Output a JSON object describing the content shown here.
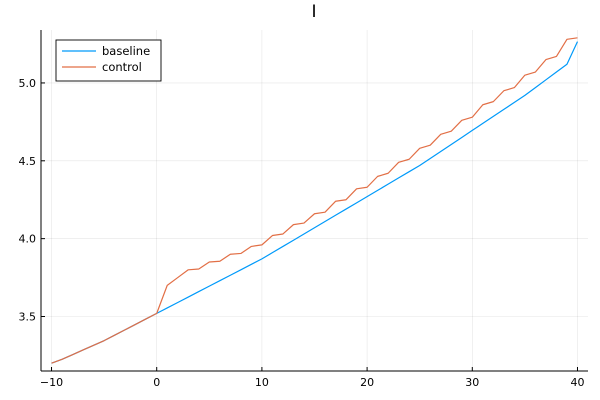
{
  "chart_data": {
    "type": "line",
    "title": "I",
    "xlabel": "",
    "ylabel": "",
    "xlim": [
      -11,
      41
    ],
    "ylim": [
      3.15,
      5.34
    ],
    "xticks": [
      -10,
      0,
      10,
      20,
      30,
      40
    ],
    "yticks": [
      3.5,
      4.0,
      4.5,
      5.0
    ],
    "xtick_labels": [
      "−10",
      "0",
      "10",
      "20",
      "30",
      "40"
    ],
    "ytick_labels": [
      "3.5",
      "4.0",
      "4.5",
      "5.0"
    ],
    "grid": true,
    "legend_position": "top-left",
    "x": [
      -10,
      -9,
      -8,
      -7,
      -6,
      -5,
      -4,
      -3,
      -2,
      -1,
      0,
      1,
      2,
      3,
      4,
      5,
      6,
      7,
      8,
      9,
      10,
      11,
      12,
      13,
      14,
      15,
      16,
      17,
      18,
      19,
      20,
      21,
      22,
      23,
      24,
      25,
      26,
      27,
      28,
      29,
      30,
      31,
      32,
      33,
      34,
      35,
      36,
      37,
      38,
      39,
      40
    ],
    "series": [
      {
        "name": "baseline",
        "color": "#009AFA",
        "values": [
          3.2,
          3.225,
          3.255,
          3.285,
          3.315,
          3.345,
          3.38,
          3.415,
          3.45,
          3.485,
          3.52,
          3.555,
          3.59,
          3.625,
          3.66,
          3.695,
          3.73,
          3.765,
          3.8,
          3.835,
          3.87,
          3.91,
          3.95,
          3.99,
          4.03,
          4.07,
          4.11,
          4.15,
          4.19,
          4.23,
          4.27,
          4.31,
          4.35,
          4.39,
          4.43,
          4.47,
          4.515,
          4.56,
          4.605,
          4.65,
          4.695,
          4.74,
          4.785,
          4.83,
          4.875,
          4.92,
          4.97,
          5.02,
          5.07,
          5.12,
          5.265
        ]
      },
      {
        "name": "control",
        "color": "#E26F46",
        "values": [
          3.2,
          3.225,
          3.255,
          3.285,
          3.315,
          3.345,
          3.38,
          3.415,
          3.45,
          3.485,
          3.52,
          3.7,
          3.75,
          3.8,
          3.805,
          3.85,
          3.855,
          3.9,
          3.905,
          3.95,
          3.96,
          4.02,
          4.03,
          4.09,
          4.1,
          4.16,
          4.17,
          4.24,
          4.25,
          4.32,
          4.33,
          4.4,
          4.42,
          4.49,
          4.51,
          4.58,
          4.6,
          4.67,
          4.69,
          4.76,
          4.78,
          4.86,
          4.88,
          4.95,
          4.97,
          5.05,
          5.07,
          5.15,
          5.17,
          5.28,
          5.29
        ]
      }
    ]
  }
}
